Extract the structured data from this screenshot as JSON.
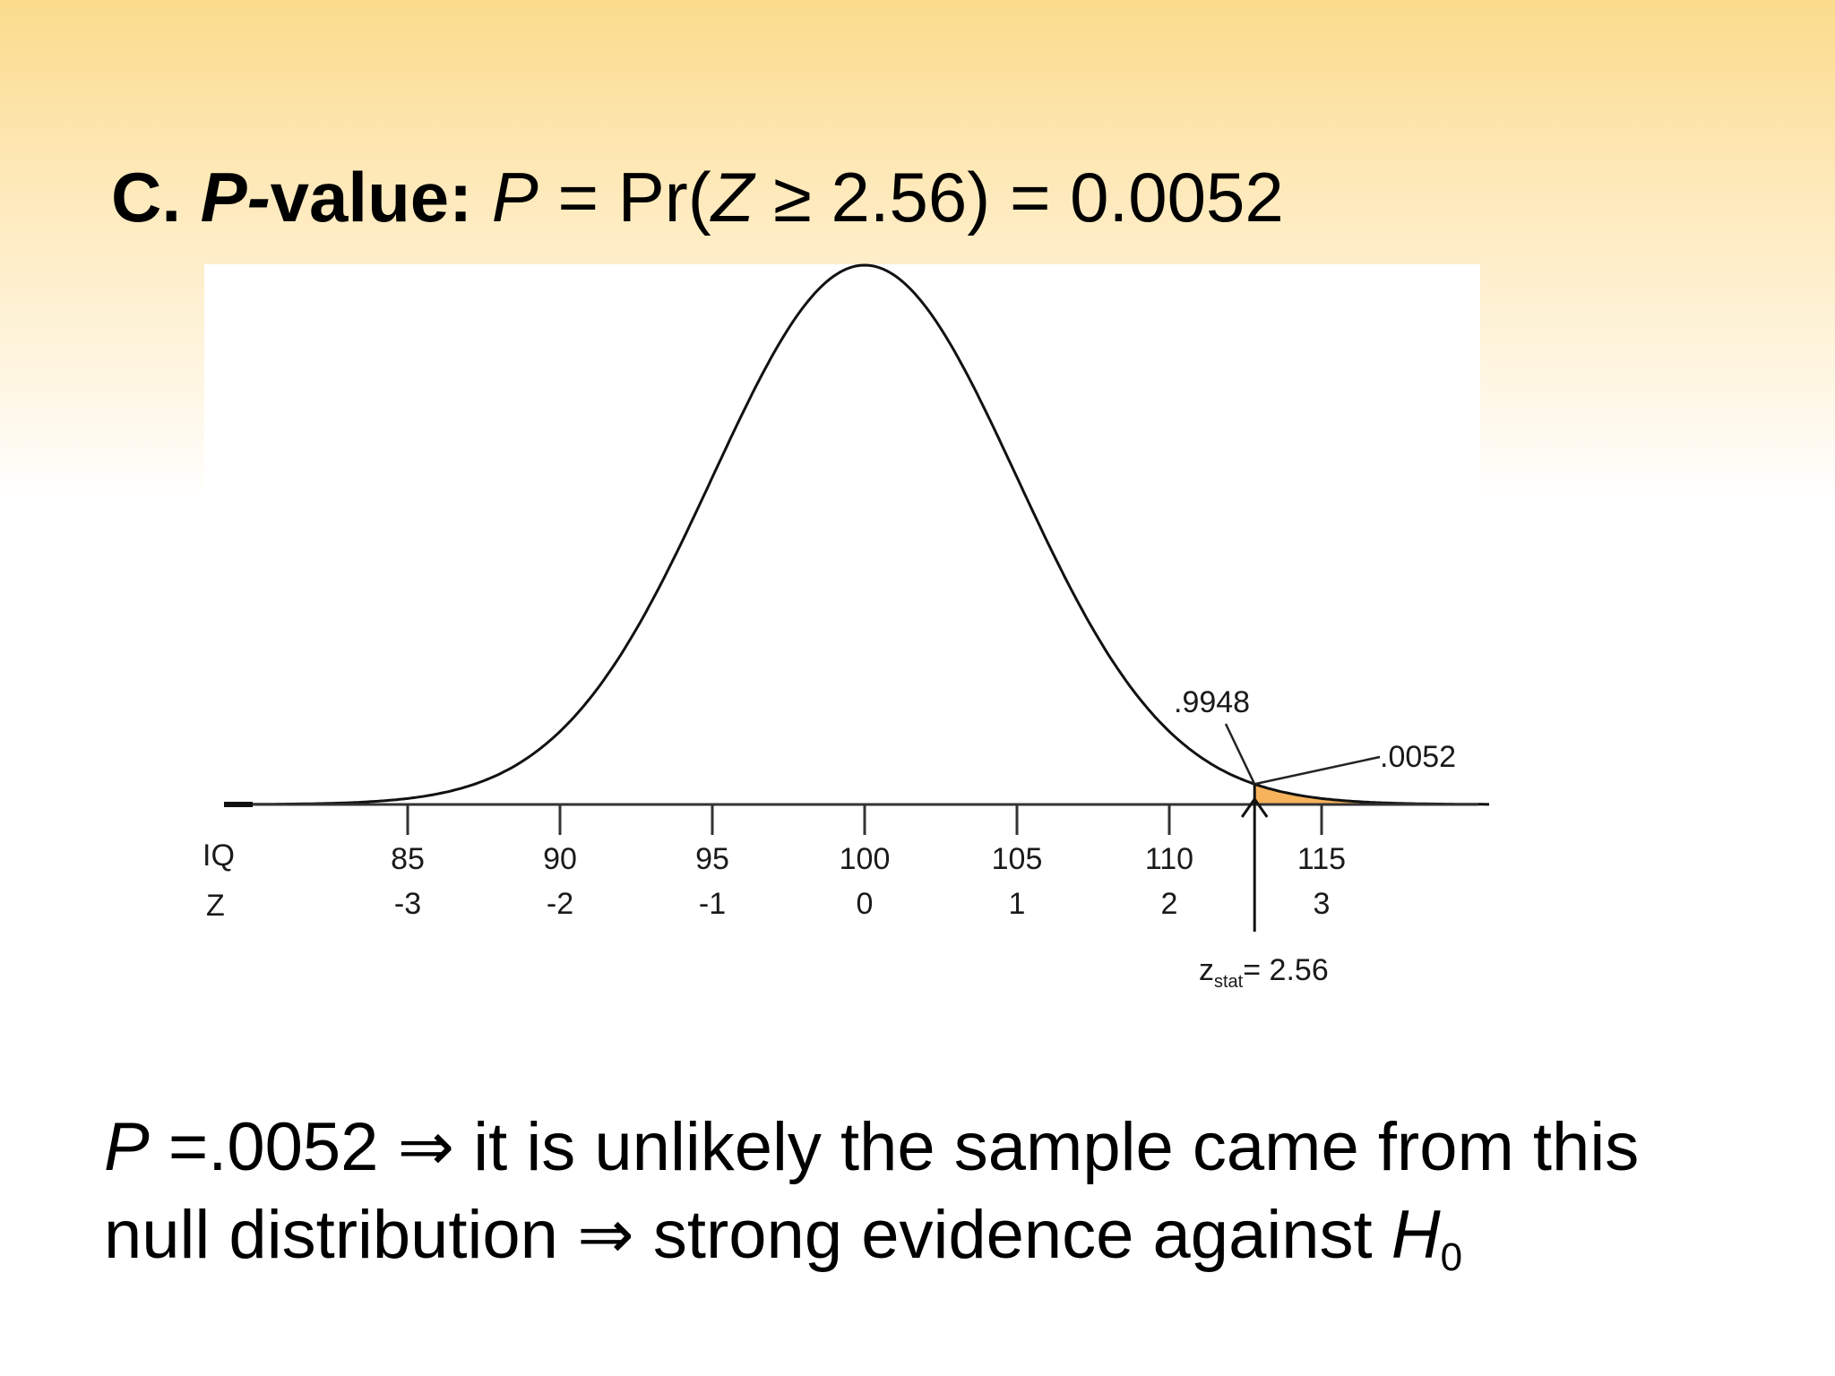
{
  "heading": {
    "label": "C.",
    "term": "P-",
    "term_rest": "value:",
    "var": "P",
    "eq1": "= Pr(",
    "z": "Z",
    "eq2": "≥ 2.56) = 0.0052"
  },
  "chart_data": {
    "type": "area",
    "distribution": "normal",
    "mean": 0,
    "sd": 1,
    "xlim": [
      -4.1,
      4.1
    ],
    "shaded_region": {
      "from": 2.56,
      "to": 4.1,
      "color": "#f7b35c"
    },
    "rows": [
      {
        "label": "IQ",
        "ticks": [
          "85",
          "90",
          "95",
          "100",
          "105",
          "110",
          "115"
        ]
      },
      {
        "label": "Z",
        "ticks": [
          "-3",
          "-2",
          "-1",
          "0",
          "1",
          "2",
          "3"
        ]
      }
    ],
    "z_values": [
      -3,
      -2,
      -1,
      0,
      1,
      2,
      3
    ],
    "annotations": [
      {
        "text": ".9948",
        "points_to": 2.56
      },
      {
        "text": ".0052",
        "points_to": 2.56
      }
    ],
    "stat_marker": {
      "z": 2.56,
      "label_main": "z",
      "label_sub": "stat",
      "label_rest": "= 2.56"
    }
  },
  "conclusion": {
    "line1_var": "P",
    "line1_rest": " =.0052 ⇒ it is unlikely the sample came from this",
    "line2_text": "null distribution ⇒  strong evidence against ",
    "line2_var": "H",
    "line2_sub": "0"
  },
  "colors": {
    "chart_bg": "#ffffff",
    "curve": "#111111",
    "shade": "#f7b35c"
  }
}
